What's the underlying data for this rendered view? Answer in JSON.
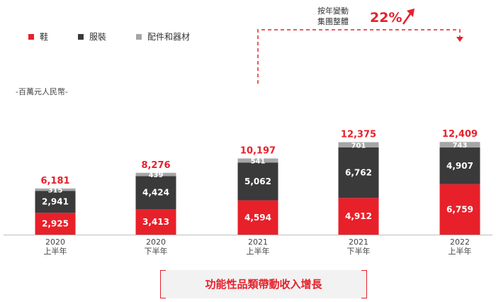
{
  "legend": {
    "footwear": "鞋",
    "apparel": "服裝",
    "accessories": "配件和器材"
  },
  "unit_label": "-百萬元人民幣-",
  "annotation": {
    "line1": "按年變動",
    "line2": "集團整體",
    "growth": "22%"
  },
  "banner_text": "功能性品類帶動收入增長",
  "colors": {
    "footwear": "#e8202a",
    "apparel": "#3a3a3a",
    "accessories": "#a6a6a6",
    "total": "#e8202a",
    "arrow": "#e8202a"
  },
  "chart_data": {
    "type": "bar",
    "stacked": true,
    "categories": [
      [
        "2020",
        "上半年"
      ],
      [
        "2020",
        "下半年"
      ],
      [
        "2021",
        "上半年"
      ],
      [
        "2021",
        "下半年"
      ],
      [
        "2022",
        "上半年"
      ]
    ],
    "series": [
      {
        "name": "鞋",
        "values": [
          2925,
          3413,
          4594,
          4912,
          6759
        ]
      },
      {
        "name": "服裝",
        "values": [
          2941,
          4424,
          5062,
          6762,
          4907
        ]
      },
      {
        "name": "配件和器材",
        "values": [
          315,
          439,
          541,
          701,
          743
        ]
      }
    ],
    "value_labels": [
      [
        "2,925",
        "3,413",
        "4,594",
        "4,912",
        "6,759"
      ],
      [
        "2,941",
        "4,424",
        "5,062",
        "6,762",
        "4,907"
      ],
      [
        "315",
        "439",
        "541",
        "701",
        "743"
      ]
    ],
    "totals": [
      6181,
      8276,
      10197,
      12375,
      12409
    ],
    "total_labels": [
      "6,181",
      "8,276",
      "10,197",
      "12,375",
      "12,409"
    ],
    "ylim": [
      0,
      13000
    ],
    "ylabel": "-百萬元人民幣-",
    "legend_position": "top-left",
    "grid": false
  }
}
